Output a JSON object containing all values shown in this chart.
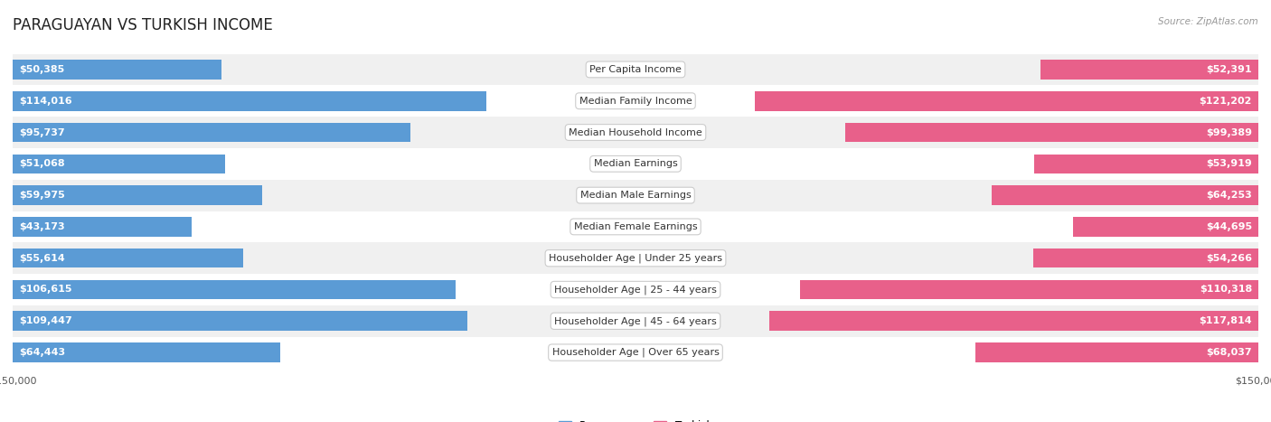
{
  "title": "PARAGUAYAN VS TURKISH INCOME",
  "source": "Source: ZipAtlas.com",
  "categories": [
    "Per Capita Income",
    "Median Family Income",
    "Median Household Income",
    "Median Earnings",
    "Median Male Earnings",
    "Median Female Earnings",
    "Householder Age | Under 25 years",
    "Householder Age | 25 - 44 years",
    "Householder Age | 45 - 64 years",
    "Householder Age | Over 65 years"
  ],
  "paraguayan": [
    50385,
    114016,
    95737,
    51068,
    59975,
    43173,
    55614,
    106615,
    109447,
    64443
  ],
  "turkish": [
    52391,
    121202,
    99389,
    53919,
    64253,
    44695,
    54266,
    110318,
    117814,
    68037
  ],
  "paraguayan_labels": [
    "$50,385",
    "$114,016",
    "$95,737",
    "$51,068",
    "$59,975",
    "$43,173",
    "$55,614",
    "$106,615",
    "$109,447",
    "$64,443"
  ],
  "turkish_labels": [
    "$52,391",
    "$121,202",
    "$99,389",
    "$53,919",
    "$64,253",
    "$44,695",
    "$54,266",
    "$110,318",
    "$117,814",
    "$68,037"
  ],
  "paraguayan_color_light": "#aec6e8",
  "paraguayan_color_dark": "#5b9bd5",
  "turkish_color_light": "#f4a7c0",
  "turkish_color_dark": "#e8608a",
  "max_val": 150000,
  "bar_height": 0.62,
  "row_colors": [
    "#f0f0f0",
    "#ffffff"
  ],
  "background_color": "#ffffff",
  "title_fontsize": 12,
  "label_fontsize": 8,
  "category_fontsize": 8,
  "axis_label_fontsize": 8,
  "threshold": 42000,
  "legend_labels": [
    "Paraguayan",
    "Turkish"
  ]
}
